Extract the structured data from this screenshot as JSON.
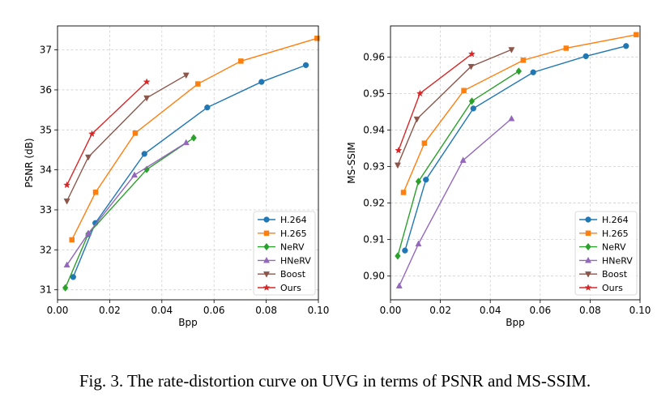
{
  "caption": "Fig. 3.  The rate-distortion curve on UVG in terms of PSNR and MS-SSIM.",
  "chart_data": [
    {
      "type": "line",
      "xlabel": "Bpp",
      "ylabel": "PSNR (dB)",
      "xlim": [
        0.0,
        0.1
      ],
      "ylim": [
        30.75,
        37.6
      ],
      "xticks": [
        "0.00",
        "0.02",
        "0.04",
        "0.06",
        "0.08",
        "0.10"
      ],
      "xtick_values": [
        0.0,
        0.02,
        0.04,
        0.06,
        0.08,
        0.1
      ],
      "yticks": [
        "31",
        "32",
        "33",
        "34",
        "35",
        "36",
        "37"
      ],
      "ytick_values": [
        31,
        32,
        33,
        34,
        35,
        36,
        37
      ],
      "grid": true,
      "legend_position": "lower-right",
      "series": [
        {
          "name": "H.264",
          "color": "#1f77b4",
          "marker": "circle",
          "x": [
            0.006,
            0.0145,
            0.0333,
            0.0574,
            0.0782,
            0.0952
          ],
          "y": [
            31.32,
            32.67,
            34.4,
            35.56,
            36.2,
            36.62
          ]
        },
        {
          "name": "H.265",
          "color": "#ff7f0e",
          "marker": "square",
          "x": [
            0.0055,
            0.0146,
            0.0298,
            0.0538,
            0.0703,
            0.0995
          ],
          "y": [
            32.25,
            33.44,
            34.92,
            36.15,
            36.72,
            37.29
          ]
        },
        {
          "name": "NeRV",
          "color": "#2ca02c",
          "marker": "diamond",
          "x": [
            0.003,
            0.0118,
            0.0342,
            0.0522
          ],
          "y": [
            31.05,
            32.4,
            34.01,
            34.8
          ]
        },
        {
          "name": "HNeRV",
          "color": "#9467bd",
          "marker": "triangle-up",
          "x": [
            0.0036,
            0.0118,
            0.0295,
            0.0493
          ],
          "y": [
            31.62,
            32.41,
            33.87,
            34.68
          ]
        },
        {
          "name": "Boost",
          "color": "#8c564b",
          "marker": "triangle-down",
          "x": [
            0.0036,
            0.0118,
            0.0342,
            0.0493
          ],
          "y": [
            33.22,
            34.32,
            35.8,
            36.37
          ]
        },
        {
          "name": "Ours",
          "color": "#d62728",
          "marker": "star",
          "x": [
            0.0036,
            0.0132,
            0.0342
          ],
          "y": [
            33.62,
            34.9,
            36.2
          ]
        }
      ]
    },
    {
      "type": "line",
      "xlabel": "Bpp",
      "ylabel": "MS-SSIM",
      "xlim": [
        0.0,
        0.1
      ],
      "ylim": [
        0.8935,
        0.9685
      ],
      "xticks": [
        "0.00",
        "0.02",
        "0.04",
        "0.06",
        "0.08",
        "0.10"
      ],
      "xtick_values": [
        0.0,
        0.02,
        0.04,
        0.06,
        0.08,
        0.1
      ],
      "yticks": [
        "0.90",
        "0.91",
        "0.92",
        "0.93",
        "0.94",
        "0.95",
        "0.96"
      ],
      "ytick_values": [
        0.9,
        0.91,
        0.92,
        0.93,
        0.94,
        0.95,
        0.96
      ],
      "grid": true,
      "legend_position": "lower-right",
      "series": [
        {
          "name": "H.264",
          "color": "#1f77b4",
          "marker": "circle",
          "x": [
            0.0058,
            0.0142,
            0.0332,
            0.0572,
            0.0783,
            0.0944
          ],
          "y": [
            0.907,
            0.9264,
            0.9459,
            0.9558,
            0.9602,
            0.963
          ]
        },
        {
          "name": "H.265",
          "color": "#ff7f0e",
          "marker": "square",
          "x": [
            0.0052,
            0.0136,
            0.0294,
            0.0532,
            0.0704,
            0.0985
          ],
          "y": [
            0.9229,
            0.9364,
            0.9508,
            0.9591,
            0.9624,
            0.9661
          ]
        },
        {
          "name": "NeRV",
          "color": "#2ca02c",
          "marker": "diamond",
          "x": [
            0.0029,
            0.0112,
            0.0326,
            0.0514
          ],
          "y": [
            0.9055,
            0.9259,
            0.9479,
            0.9561
          ]
        },
        {
          "name": "HNeRV",
          "color": "#9467bd",
          "marker": "triangle-up",
          "x": [
            0.0035,
            0.0112,
            0.0291,
            0.0485
          ],
          "y": [
            0.8973,
            0.9088,
            0.9317,
            0.9431
          ]
        },
        {
          "name": "Boost",
          "color": "#8c564b",
          "marker": "triangle-down",
          "x": [
            0.0029,
            0.0106,
            0.0323,
            0.0485
          ],
          "y": [
            0.9304,
            0.943,
            0.9574,
            0.962
          ]
        },
        {
          "name": "Ours",
          "color": "#d62728",
          "marker": "star",
          "x": [
            0.0032,
            0.0118,
            0.0326
          ],
          "y": [
            0.9344,
            0.95,
            0.9608
          ]
        }
      ]
    }
  ]
}
